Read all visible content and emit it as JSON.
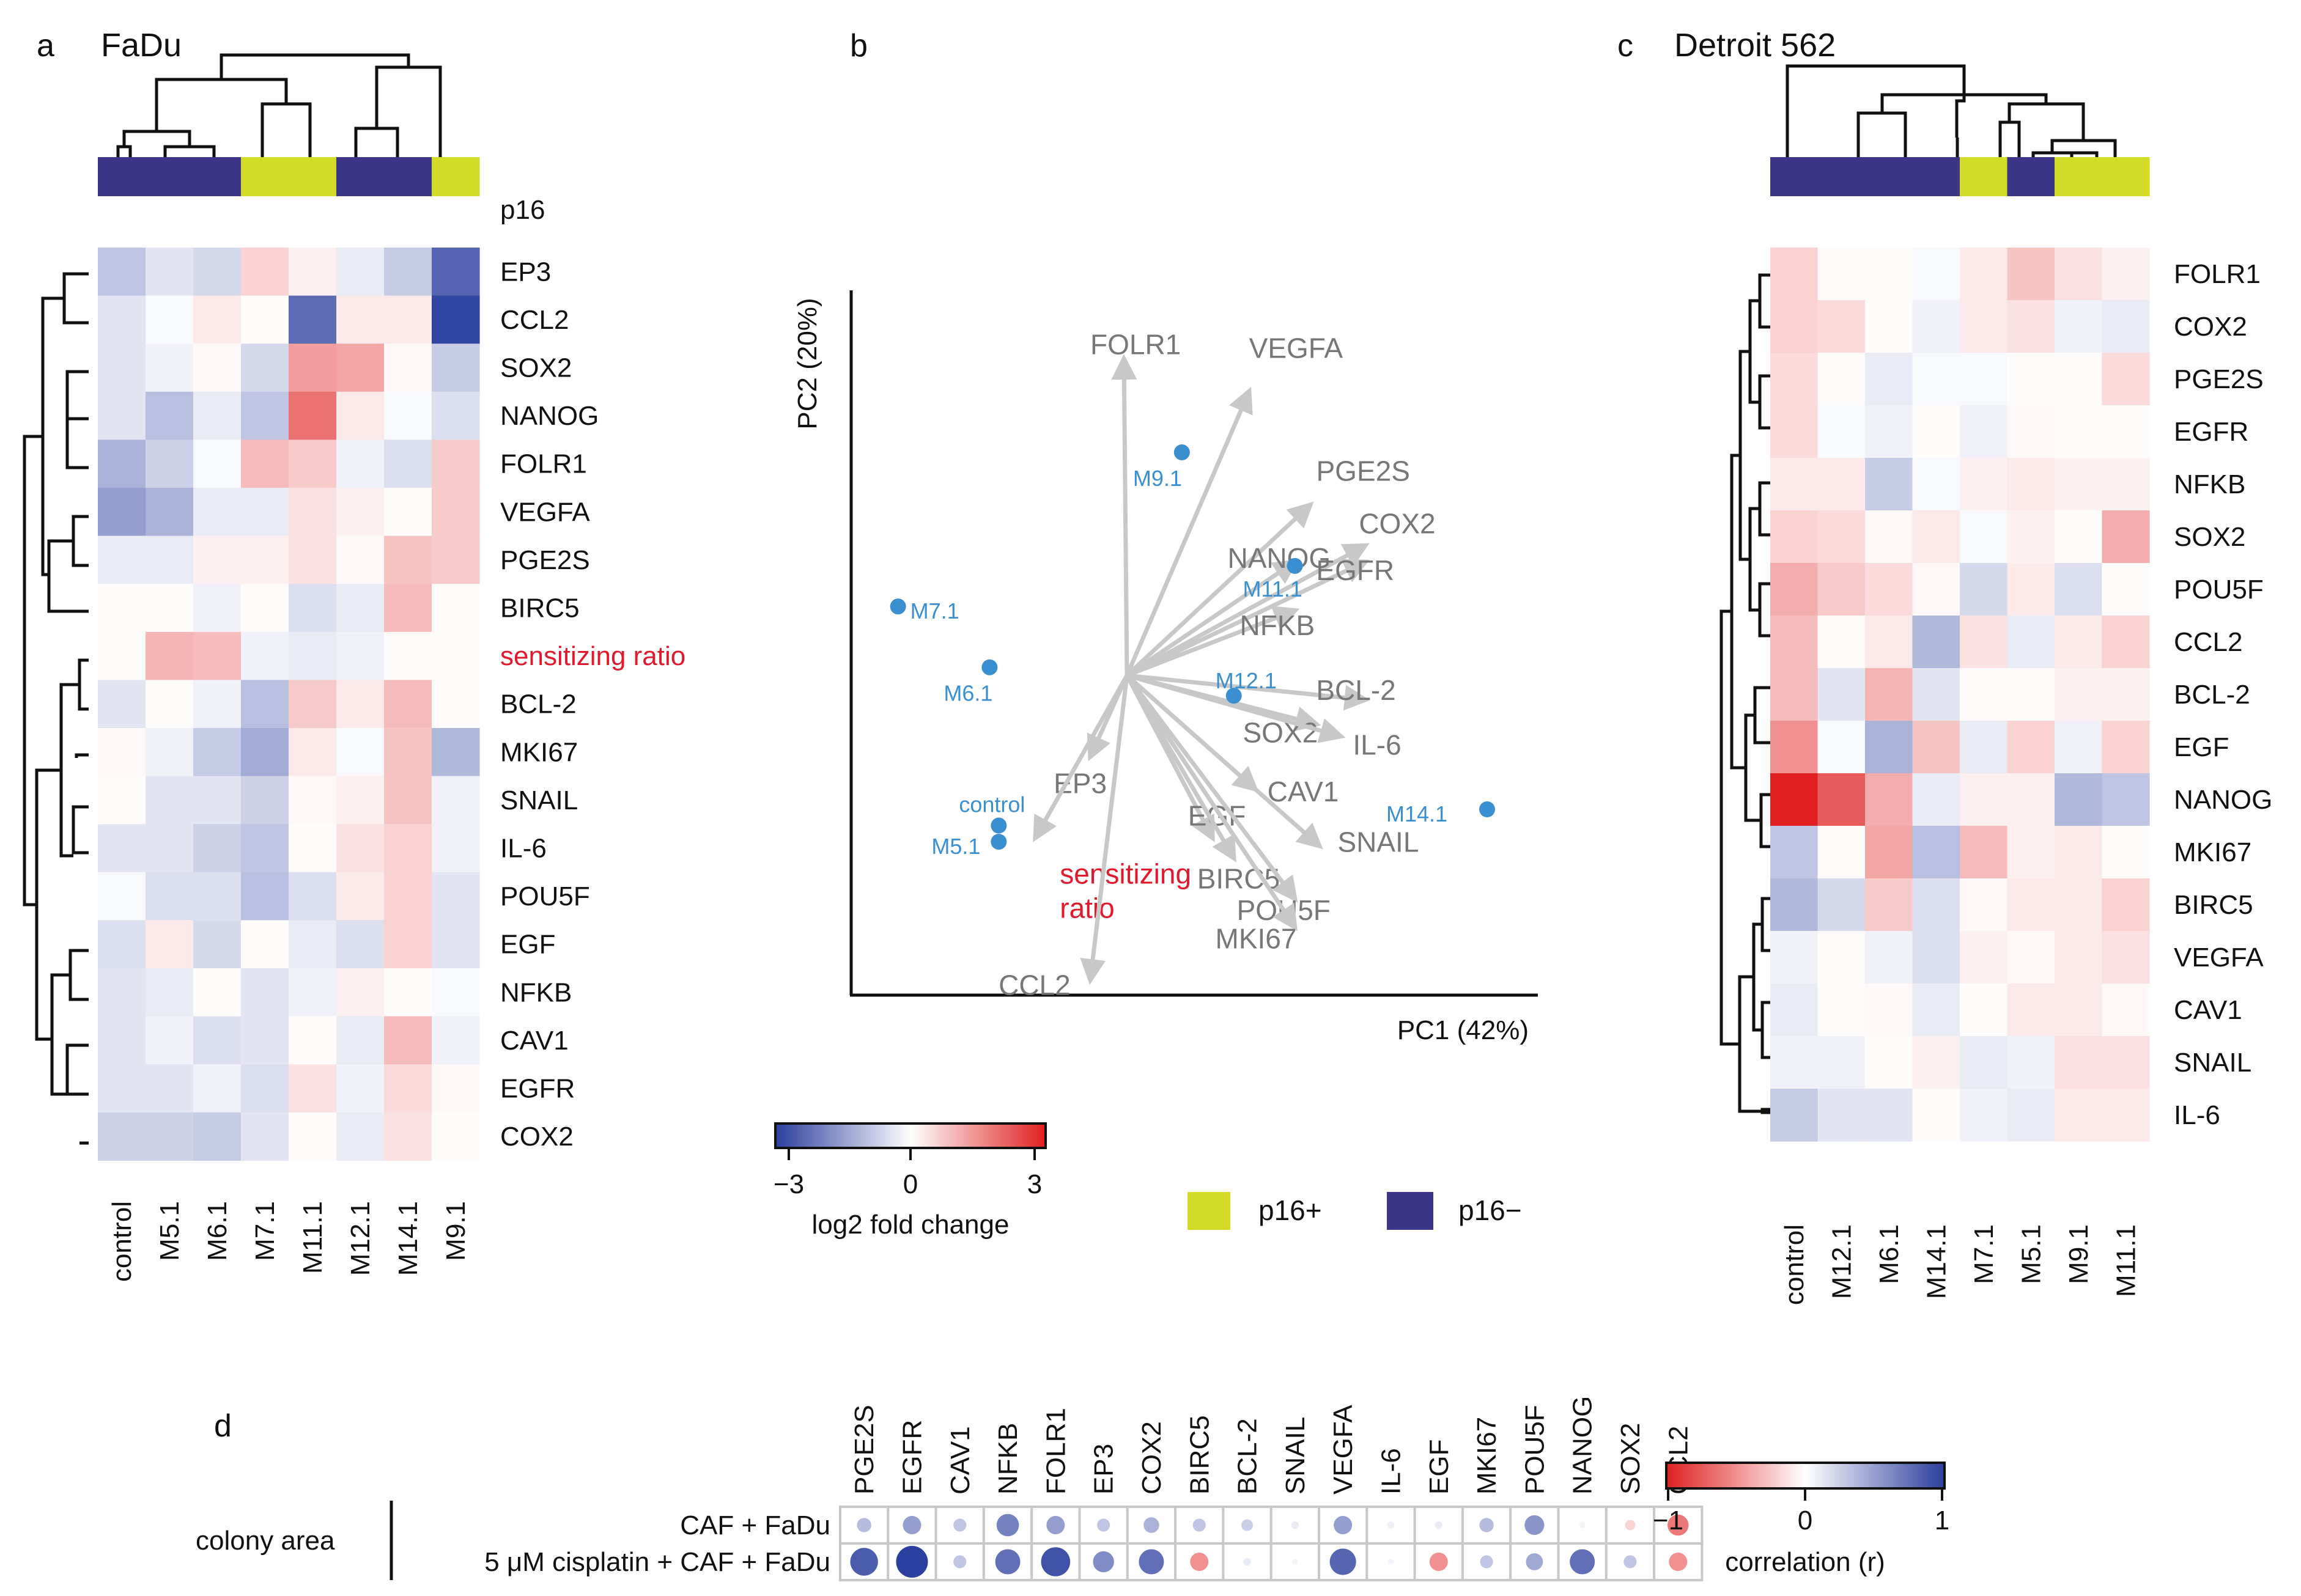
{
  "colors": {
    "p16_pos": "#d4dc2a",
    "p16_neg": "#3d3688",
    "neg": "#2b3f9e",
    "pos": "#e02020",
    "grey": "#777777",
    "arrow": "#c8c8c8",
    "point": "#3a8fd1",
    "highlight": "#e0192c"
  },
  "chart_data": [
    {
      "type": "heatmap",
      "panel_label": "a",
      "title": "FaDu",
      "columns": [
        "control",
        "M5.1",
        "M6.1",
        "M7.1",
        "M11.1",
        "M12.1",
        "M14.1",
        "M9.1"
      ],
      "p16_label": "p16",
      "p16": [
        "neg",
        "neg",
        "neg",
        "pos",
        "pos",
        "neg",
        "neg",
        "pos"
      ],
      "rows": [
        "EP3",
        "CCL2",
        "SOX2",
        "NANOG",
        "FOLR1",
        "VEGFA",
        "PGE2S",
        "BIRC5",
        "sensitizing ratio",
        "BCL-2",
        "MKI67",
        "SNAIL",
        "IL-6",
        "POU5F",
        "EGF",
        "NFKB",
        "CAV1",
        "EGFR",
        "COX2"
      ],
      "highlight_row": "sensitizing ratio",
      "values": [
        [
          -0.9,
          -0.4,
          -0.6,
          0.6,
          0.2,
          -0.3,
          -0.8,
          -2.4
        ],
        [
          -0.4,
          -0.1,
          0.3,
          0.05,
          -2.3,
          0.3,
          0.3,
          -2.9
        ],
        [
          -0.4,
          -0.2,
          0.1,
          -0.6,
          1.3,
          1.2,
          0.1,
          -0.8
        ],
        [
          -0.4,
          -1.0,
          -0.3,
          -0.9,
          1.9,
          0.3,
          -0.1,
          -0.5
        ],
        [
          -1.2,
          -0.7,
          -0.1,
          0.9,
          0.7,
          -0.2,
          -0.5,
          0.7
        ],
        [
          -1.5,
          -1.2,
          -0.3,
          -0.3,
          0.4,
          0.2,
          0.05,
          0.7
        ],
        [
          -0.3,
          -0.3,
          0.2,
          0.2,
          0.4,
          0.1,
          0.8,
          0.7
        ],
        [
          0.05,
          0.05,
          -0.2,
          0.05,
          -0.5,
          -0.3,
          0.9,
          0.05
        ],
        [
          0.05,
          1.0,
          0.9,
          -0.2,
          -0.3,
          -0.2,
          0.05,
          0.05
        ],
        [
          -0.4,
          0.05,
          -0.2,
          -1.0,
          0.7,
          0.3,
          0.9,
          0.05
        ],
        [
          0.1,
          -0.2,
          -0.8,
          -1.3,
          0.3,
          -0.1,
          0.8,
          -1.1
        ],
        [
          0.05,
          -0.4,
          -0.4,
          -0.7,
          0.1,
          0.2,
          0.8,
          -0.2
        ],
        [
          -0.4,
          -0.4,
          -0.7,
          -0.9,
          0.05,
          0.4,
          0.6,
          -0.2
        ],
        [
          -0.1,
          -0.5,
          -0.5,
          -1.0,
          -0.5,
          0.3,
          0.6,
          -0.4
        ],
        [
          -0.5,
          0.3,
          -0.6,
          0.05,
          -0.3,
          -0.5,
          0.6,
          -0.4
        ],
        [
          -0.4,
          -0.3,
          0.05,
          -0.4,
          -0.2,
          0.2,
          0.05,
          -0.1
        ],
        [
          -0.4,
          -0.2,
          -0.5,
          -0.4,
          0.05,
          -0.3,
          0.9,
          -0.2
        ],
        [
          -0.4,
          -0.4,
          -0.2,
          -0.5,
          0.4,
          -0.2,
          0.5,
          0.1
        ],
        [
          -0.7,
          -0.7,
          -0.8,
          -0.4,
          0.05,
          -0.3,
          0.4,
          0.05
        ]
      ]
    },
    {
      "type": "scatter",
      "panel_label": "b",
      "subtype": "pca-biplot",
      "xlabel": "PC1 (42%)",
      "ylabel": "PC2 (20%)",
      "points": [
        {
          "label": "M9.1",
          "x": 0.18,
          "y": 0.55
        },
        {
          "label": "M7.1",
          "x": -0.75,
          "y": 0.17
        },
        {
          "label": "M6.1",
          "x": -0.45,
          "y": 0.02
        },
        {
          "label": "M11.1",
          "x": 0.55,
          "y": 0.27
        },
        {
          "label": "M12.1",
          "x": 0.35,
          "y": -0.05
        },
        {
          "label": "M14.1",
          "x": 1.18,
          "y": -0.33
        },
        {
          "label": "control",
          "x": -0.42,
          "y": -0.37
        },
        {
          "label": "M5.1",
          "x": -0.42,
          "y": -0.41
        }
      ],
      "loadings": [
        {
          "label": "FOLR1",
          "x": -0.01,
          "y": 0.78
        },
        {
          "label": "VEGFA",
          "x": 0.4,
          "y": 0.7
        },
        {
          "label": "PGE2S",
          "x": 0.6,
          "y": 0.42
        },
        {
          "label": "COX2",
          "x": 0.78,
          "y": 0.32
        },
        {
          "label": "NANOG",
          "x": 0.55,
          "y": 0.28
        },
        {
          "label": "EGFR",
          "x": 0.78,
          "y": 0.28
        },
        {
          "label": "NFKB",
          "x": 0.55,
          "y": 0.16
        },
        {
          "label": "BCL-2",
          "x": 0.78,
          "y": -0.06
        },
        {
          "label": "SOX2",
          "x": 0.62,
          "y": -0.12
        },
        {
          "label": "IL-6",
          "x": 0.7,
          "y": -0.15
        },
        {
          "label": "CAV1",
          "x": 0.42,
          "y": -0.28
        },
        {
          "label": "SNAIL",
          "x": 0.63,
          "y": -0.42
        },
        {
          "label": "EGF",
          "x": 0.28,
          "y": -0.4
        },
        {
          "label": "BIRC5",
          "x": 0.35,
          "y": -0.45
        },
        {
          "label": "POU5F",
          "x": 0.55,
          "y": -0.55
        },
        {
          "label": "MKI67",
          "x": 0.55,
          "y": -0.62
        },
        {
          "label": "EP3",
          "x": -0.12,
          "y": -0.2
        },
        {
          "label": "sensitizing ratio",
          "x": -0.3,
          "y": -0.4
        },
        {
          "label": "CCL2",
          "x": -0.12,
          "y": -0.75
        }
      ],
      "highlight": "sensitizing ratio",
      "xlim": [
        -0.9,
        1.4
      ],
      "ylim": [
        -1.0,
        1.0
      ]
    },
    {
      "type": "heatmap",
      "panel_label": "c",
      "title": "Detroit 562",
      "columns": [
        "control",
        "M12.1",
        "M6.1",
        "M14.1",
        "M7.1",
        "M5.1",
        "M9.1",
        "M11.1"
      ],
      "p16": [
        "neg",
        "neg",
        "neg",
        "neg",
        "pos",
        "neg",
        "pos",
        "pos"
      ],
      "rows": [
        "FOLR1",
        "COX2",
        "PGE2S",
        "EGFR",
        "NFKB",
        "SOX2",
        "POU5F",
        "CCL2",
        "BCL-2",
        "EGF",
        "NANOG",
        "MKI67",
        "BIRC5",
        "VEGFA",
        "CAV1",
        "SNAIL",
        "IL-6"
      ],
      "values": [
        [
          0.6,
          0.05,
          0.05,
          -0.1,
          0.3,
          0.8,
          0.4,
          0.2
        ],
        [
          0.6,
          0.5,
          0.05,
          -0.2,
          0.3,
          0.4,
          -0.2,
          -0.3
        ],
        [
          0.5,
          0.05,
          -0.3,
          -0.1,
          -0.1,
          0.05,
          0.05,
          0.5
        ],
        [
          0.5,
          -0.1,
          -0.2,
          0.05,
          -0.2,
          0.1,
          0.05,
          0.05
        ],
        [
          0.3,
          0.3,
          -0.8,
          -0.1,
          0.2,
          0.3,
          0.2,
          0.2
        ],
        [
          0.6,
          0.5,
          0.1,
          0.3,
          -0.1,
          0.2,
          0.05,
          1.1
        ],
        [
          1.1,
          0.7,
          0.5,
          0.1,
          -0.6,
          0.3,
          -0.5,
          0.05
        ],
        [
          0.9,
          0.05,
          0.3,
          -1.1,
          0.4,
          -0.3,
          0.3,
          0.6
        ],
        [
          0.9,
          -0.4,
          1.0,
          -0.4,
          0.05,
          0.05,
          0.2,
          0.2
        ],
        [
          1.5,
          -0.1,
          -1.2,
          0.8,
          -0.3,
          0.6,
          -0.2,
          0.6
        ],
        [
          3.0,
          2.2,
          1.1,
          -0.3,
          0.2,
          0.2,
          -1.1,
          -0.9
        ],
        [
          -0.9,
          0.05,
          1.2,
          -1.0,
          0.9,
          0.2,
          0.3,
          0.05
        ],
        [
          -1.1,
          -0.6,
          0.7,
          -0.5,
          0.1,
          0.3,
          0.3,
          0.6
        ],
        [
          -0.2,
          0.05,
          -0.2,
          -0.5,
          0.2,
          0.1,
          0.3,
          0.4
        ],
        [
          -0.3,
          0.05,
          0.1,
          -0.3,
          0.05,
          0.3,
          0.3,
          0.1
        ],
        [
          -0.2,
          -0.2,
          0.05,
          0.2,
          -0.3,
          -0.2,
          0.4,
          0.4
        ],
        [
          -0.8,
          -0.4,
          -0.4,
          0.05,
          -0.2,
          -0.3,
          0.3,
          0.3
        ]
      ]
    },
    {
      "type": "heatmap",
      "panel_label": "d",
      "subtype": "correlation-dotplot",
      "group_label": "colony area",
      "columns": [
        "PGE2S",
        "EGFR",
        "CAV1",
        "NFKB",
        "FOLR1",
        "EP3",
        "COX2",
        "BIRC5",
        "BCL-2",
        "SNAIL",
        "VEGFA",
        "IL-6",
        "EGF",
        "MKI67",
        "POU5F",
        "NANOG",
        "SOX2",
        "CCL2"
      ],
      "rows": [
        "CAF + FaDu",
        "5 μM cisplatin + CAF + FaDu"
      ],
      "values": [
        [
          0.35,
          0.5,
          0.3,
          0.65,
          0.5,
          0.3,
          0.4,
          0.3,
          0.25,
          0.1,
          0.5,
          0.08,
          0.1,
          0.35,
          0.55,
          0.05,
          -0.2,
          -0.6
        ],
        [
          0.85,
          1.0,
          0.3,
          0.75,
          0.9,
          0.6,
          0.75,
          -0.5,
          0.1,
          0.05,
          0.8,
          0.05,
          -0.5,
          0.3,
          0.45,
          0.75,
          0.3,
          -0.5
        ]
      ]
    }
  ],
  "legend_fc": {
    "ticks": [
      "−3",
      "0",
      "3"
    ],
    "label": "log2 fold change"
  },
  "legend_p16": {
    "pos": "p16+",
    "neg": "p16−"
  },
  "legend_corr": {
    "ticks": [
      "−1",
      "0",
      "1"
    ],
    "label": "correlation (r)"
  }
}
